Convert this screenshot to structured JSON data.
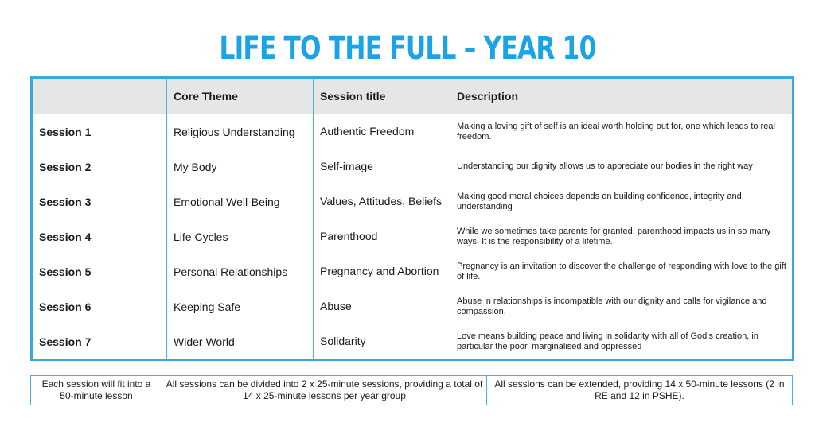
{
  "title": "LIFE TO THE FULL – YEAR 10",
  "headers": [
    "",
    "Core Theme",
    "Session title",
    "Description"
  ],
  "rows": [
    {
      "session": "Session 1",
      "theme": "Religious Understanding",
      "title": "Authentic Freedom",
      "description": "Making a loving gift of self is an ideal worth holding out for, one which leads to real freedom."
    },
    {
      "session": "Session 2",
      "theme": "My Body",
      "title": "Self-image",
      "description": "Understanding our dignity allows us to appreciate our bodies in the right way"
    },
    {
      "session": "Session 3",
      "theme": "Emotional Well-Being",
      "title": "Values, Attitudes, Beliefs",
      "description": "Making good moral choices depends on building confidence, integrity and understanding"
    },
    {
      "session": "Session 4",
      "theme": "Life Cycles",
      "title": "Parenthood",
      "description": "While we sometimes take parents for granted, parenthood impacts us in so many ways. It is the responsibility of a lifetime."
    },
    {
      "session": "Session 5",
      "theme": "Personal Relationships",
      "title": "Pregnancy and Abortion",
      "description": "Pregnancy is an invitation to discover the challenge of responding with love to the gift of life."
    },
    {
      "session": "Session 6",
      "theme": "Keeping Safe",
      "title": "Abuse",
      "description": "Abuse in relationships is incompatible with our dignity and calls for vigilance and compassion."
    },
    {
      "session": "Session 7",
      "theme": "Wider World",
      "title": "Solidarity",
      "description": "Love means building peace and living in solidarity with all of God’s creation, in particular the poor, marginalised and oppressed"
    }
  ],
  "footer": [
    "Each session will fit into a 50-minute lesson",
    "All sessions can be divided into 2 x 25-minute sessions, providing a total of 14 x 25-minute lessons per year group",
    "All sessions can be extended, providing 14 x 50-minute lessons (2 in RE and 12 in PSHE)."
  ],
  "colors": {
    "accent": "#1aa3e6",
    "border": "#3aa8e0",
    "header_bg": "#e6e6e6"
  }
}
